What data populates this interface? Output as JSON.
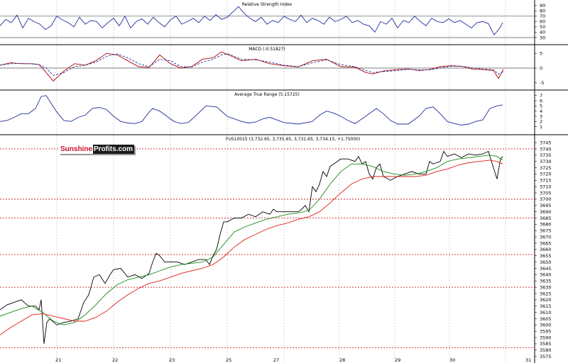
{
  "logo": {
    "part1": "Sunshine",
    "part2": "Profits.com"
  },
  "chart_data": [
    {
      "type": "line",
      "title": "Relative Strength Index",
      "ylim": [
        22,
        95
      ],
      "yticks": [
        90,
        80,
        70,
        60,
        50,
        40,
        30
      ],
      "reference_lines": [
        70,
        30
      ],
      "series": [
        {
          "color": "#1f2f9c",
          "x": [
            0,
            8,
            16,
            24,
            32,
            40,
            48,
            56,
            64,
            72,
            80,
            88,
            96,
            104,
            112,
            120,
            128,
            136,
            144,
            152,
            160,
            168,
            176,
            184,
            192,
            200,
            208,
            216,
            224,
            232,
            240,
            248,
            256,
            264,
            272,
            280,
            288,
            296,
            304,
            312,
            320,
            328,
            336,
            344,
            352,
            360,
            368,
            376,
            384,
            392,
            400,
            408,
            416,
            424,
            432,
            440,
            448,
            456,
            464,
            472,
            480,
            488,
            496,
            504,
            512,
            520,
            528,
            536,
            544,
            552,
            560,
            568,
            576,
            584,
            592,
            600,
            608,
            616,
            624,
            632,
            640,
            648,
            656,
            664,
            672,
            680,
            688,
            696,
            704,
            708
          ],
          "values": [
            52,
            64,
            58,
            72,
            48,
            66,
            60,
            55,
            45,
            52,
            70,
            63,
            58,
            50,
            68,
            55,
            62,
            60,
            48,
            58,
            66,
            52,
            70,
            48,
            60,
            65,
            55,
            68,
            58,
            50,
            63,
            70,
            55,
            60,
            66,
            58,
            70,
            62,
            73,
            64,
            68,
            78,
            88,
            75,
            66,
            60,
            68,
            55,
            62,
            58,
            70,
            64,
            60,
            72,
            58,
            66,
            62,
            55,
            68,
            60,
            64,
            70,
            58,
            62,
            55,
            52,
            40,
            60,
            55,
            66,
            48,
            62,
            58,
            70,
            60,
            52,
            66,
            60,
            58,
            65,
            58,
            62,
            55,
            48,
            58,
            60,
            56,
            35,
            48,
            58
          ]
        }
      ]
    },
    {
      "type": "line",
      "title": "MACD (-0.51827)",
      "ylim": [
        -6.5,
        7
      ],
      "yticks": [
        5,
        0,
        -5
      ],
      "series": [
        {
          "name": "MACD",
          "color": "#b00000",
          "x": [
            0,
            15,
            30,
            45,
            55,
            65,
            75,
            90,
            105,
            120,
            135,
            150,
            165,
            180,
            195,
            210,
            225,
            240,
            255,
            270,
            285,
            300,
            312,
            322,
            340,
            360,
            380,
            400,
            420,
            440,
            460,
            480,
            500,
            515,
            525,
            540,
            560,
            575,
            590,
            605,
            620,
            635,
            650,
            665,
            680,
            695,
            702,
            709
          ],
          "values": [
            1.0,
            1.8,
            1.5,
            1.5,
            1.2,
            -1.5,
            -4.4,
            -1.0,
            1.5,
            1.0,
            2.5,
            5.0,
            4.5,
            2.5,
            0.5,
            0.2,
            4.5,
            1.5,
            0.0,
            0.5,
            3.0,
            3.5,
            5.5,
            4.5,
            2.5,
            3.0,
            1.5,
            0.8,
            0.4,
            2.5,
            3.0,
            0.5,
            0.3,
            -1.5,
            -2.0,
            -1.0,
            -0.5,
            -0.3,
            -0.8,
            -0.5,
            0.5,
            0.8,
            0.6,
            -0.3,
            -0.5,
            -0.8,
            -3.5,
            -0.5
          ]
        },
        {
          "name": "Signal",
          "color": "#1f2f9c",
          "x": [
            0,
            15,
            30,
            45,
            55,
            65,
            75,
            90,
            105,
            120,
            135,
            150,
            165,
            180,
            195,
            210,
            225,
            240,
            255,
            270,
            285,
            300,
            312,
            322,
            340,
            360,
            380,
            400,
            420,
            440,
            460,
            480,
            500,
            515,
            525,
            540,
            560,
            575,
            590,
            605,
            620,
            635,
            650,
            665,
            680,
            695,
            702,
            709
          ],
          "values": [
            1.0,
            1.5,
            1.6,
            1.4,
            1.2,
            0.0,
            -2.5,
            -1.5,
            0.5,
            1.0,
            2.0,
            4.0,
            4.8,
            3.5,
            1.5,
            0.5,
            3.0,
            2.5,
            0.5,
            0.4,
            2.0,
            3.0,
            4.5,
            4.8,
            3.0,
            2.8,
            2.0,
            1.0,
            0.5,
            1.8,
            2.8,
            1.2,
            0.5,
            -0.8,
            -1.5,
            -1.2,
            -0.8,
            -0.4,
            -0.6,
            -0.6,
            0.0,
            0.6,
            0.6,
            0.1,
            -0.3,
            -0.6,
            -2.0,
            -1.2
          ]
        }
      ]
    },
    {
      "type": "line",
      "title": "Average True Range (5.15725)",
      "ylim": [
        0,
        7.5
      ],
      "yticks": [
        7,
        6,
        5,
        4,
        3,
        2,
        1
      ],
      "series": [
        {
          "color": "#1f2f9c",
          "x": [
            0,
            10,
            20,
            30,
            40,
            50,
            58,
            65,
            72,
            80,
            90,
            100,
            110,
            120,
            130,
            140,
            150,
            160,
            170,
            180,
            190,
            200,
            210,
            215,
            225,
            235,
            245,
            255,
            265,
            275,
            290,
            305,
            315,
            320,
            330,
            340,
            350,
            360,
            370,
            380,
            400,
            420,
            440,
            450,
            460,
            470,
            480,
            490,
            500,
            515,
            525,
            530,
            540,
            550,
            560,
            575,
            590,
            600,
            610,
            620,
            630,
            640,
            650,
            660,
            670,
            680,
            690,
            700,
            708
          ],
          "values": [
            2.0,
            2.2,
            2.8,
            3.5,
            3.5,
            4.5,
            6.8,
            7.0,
            5.5,
            3.8,
            2.2,
            2.0,
            2.8,
            3.2,
            4.5,
            4.7,
            4.3,
            3.0,
            2.0,
            1.7,
            1.6,
            2.0,
            3.8,
            4.5,
            4.0,
            3.0,
            2.0,
            1.6,
            1.8,
            3.0,
            5.0,
            4.8,
            3.6,
            3.0,
            2.5,
            2.0,
            1.7,
            1.9,
            2.5,
            2.8,
            1.8,
            1.5,
            2.0,
            3.2,
            4.0,
            3.6,
            3.0,
            2.2,
            1.6,
            3.0,
            4.0,
            4.5,
            3.5,
            2.2,
            1.5,
            1.5,
            3.0,
            4.5,
            4.8,
            3.5,
            2.0,
            1.6,
            1.3,
            1.5,
            2.0,
            2.3,
            4.5,
            5.0,
            5.2
          ]
        }
      ]
    },
    {
      "type": "line",
      "title": "FUS10015 (3,732.65, 3,735.65, 3,731.65, 3,734.15, +1.75000)",
      "ylim": [
        3572,
        3749
      ],
      "yticks": [
        3745,
        3740,
        3735,
        3730,
        3725,
        3720,
        3715,
        3710,
        3705,
        3700,
        3695,
        3690,
        3685,
        3680,
        3675,
        3670,
        3665,
        3660,
        3655,
        3650,
        3645,
        3640,
        3635,
        3630,
        3625,
        3620,
        3615,
        3610,
        3605,
        3600,
        3595,
        3590,
        3585,
        3580,
        3575
      ],
      "x_labels": [
        "21",
        "22",
        "23",
        "24",
        "25",
        "26",
        "27",
        "28",
        "29",
        "30",
        "31"
      ],
      "horizontal_levels": [
        3740,
        3700,
        3685,
        3656,
        3630,
        3582
      ],
      "series": [
        {
          "name": "Price",
          "color": "#000000",
          "x": [
            0,
            10,
            20,
            30,
            40,
            50,
            55,
            58,
            62,
            66,
            70,
            80,
            90,
            100,
            110,
            118,
            125,
            132,
            140,
            148,
            155,
            160,
            170,
            180,
            190,
            200,
            210,
            215,
            220,
            225,
            232,
            240,
            250,
            260,
            270,
            280,
            290,
            295,
            300,
            305,
            310,
            315,
            320,
            330,
            340,
            350,
            360,
            370,
            380,
            385,
            390,
            400,
            410,
            420,
            425,
            430,
            435,
            440,
            445,
            450,
            455,
            460,
            465,
            470,
            480,
            490,
            500,
            505,
            510,
            515,
            520,
            525,
            530,
            535,
            540,
            550,
            560,
            570,
            580,
            590,
            600,
            605,
            610,
            620,
            625,
            630,
            640,
            650,
            660,
            670,
            680,
            688,
            690,
            695,
            700,
            705,
            708
          ],
          "values": [
            3612,
            3616,
            3618,
            3620,
            3615,
            3615,
            3612,
            3620,
            3585,
            3602,
            3605,
            3600,
            3602,
            3603,
            3605,
            3618,
            3624,
            3638,
            3640,
            3633,
            3640,
            3644,
            3645,
            3638,
            3640,
            3637,
            3641,
            3650,
            3657,
            3655,
            3650,
            3650,
            3650,
            3648,
            3650,
            3652,
            3652,
            3648,
            3655,
            3660,
            3672,
            3682,
            3682,
            3685,
            3685,
            3688,
            3686,
            3690,
            3688,
            3692,
            3690,
            3690,
            3690,
            3690,
            3692,
            3695,
            3690,
            3710,
            3706,
            3712,
            3722,
            3718,
            3726,
            3728,
            3732,
            3732,
            3730,
            3734,
            3728,
            3730,
            3720,
            3716,
            3725,
            3728,
            3718,
            3715,
            3718,
            3720,
            3722,
            3720,
            3720,
            3730,
            3728,
            3730,
            3738,
            3734,
            3736,
            3733,
            3736,
            3735,
            3736,
            3738,
            3734,
            3725,
            3716,
            3732,
            3734
          ]
        },
        {
          "name": "MA short",
          "color": "#1a8a1a",
          "x": [
            0,
            15,
            30,
            45,
            60,
            75,
            90,
            105,
            120,
            135,
            150,
            165,
            180,
            195,
            210,
            225,
            240,
            255,
            270,
            285,
            300,
            315,
            330,
            345,
            360,
            375,
            390,
            405,
            420,
            435,
            450,
            465,
            480,
            495,
            510,
            525,
            540,
            555,
            570,
            585,
            600,
            615,
            630,
            645,
            660,
            675,
            690,
            700,
            708
          ],
          "values": [
            3607,
            3610,
            3613,
            3615,
            3610,
            3603,
            3600,
            3602,
            3608,
            3616,
            3625,
            3632,
            3636,
            3638,
            3640,
            3643,
            3646,
            3648,
            3649,
            3650,
            3654,
            3664,
            3674,
            3678,
            3681,
            3684,
            3686,
            3688,
            3689,
            3691,
            3700,
            3712,
            3722,
            3728,
            3728,
            3726,
            3722,
            3720,
            3719,
            3720,
            3722,
            3725,
            3730,
            3732,
            3733,
            3734,
            3735,
            3734,
            3731
          ]
        },
        {
          "name": "MA long",
          "color": "#e0201a",
          "x": [
            0,
            15,
            30,
            45,
            60,
            75,
            90,
            105,
            120,
            135,
            150,
            165,
            180,
            195,
            210,
            225,
            240,
            255,
            270,
            285,
            300,
            315,
            330,
            345,
            360,
            375,
            390,
            405,
            420,
            435,
            450,
            465,
            480,
            495,
            510,
            525,
            540,
            555,
            570,
            585,
            600,
            615,
            630,
            645,
            660,
            675,
            690,
            700,
            708
          ],
          "values": [
            3592,
            3598,
            3603,
            3608,
            3609,
            3607,
            3605,
            3603,
            3603,
            3606,
            3611,
            3618,
            3624,
            3629,
            3633,
            3635,
            3638,
            3641,
            3643,
            3645,
            3648,
            3654,
            3662,
            3668,
            3672,
            3676,
            3679,
            3681,
            3684,
            3686,
            3690,
            3697,
            3705,
            3712,
            3716,
            3718,
            3718,
            3718,
            3718,
            3718,
            3719,
            3722,
            3724,
            3727,
            3729,
            3730,
            3731,
            3730,
            3728
          ]
        }
      ]
    }
  ]
}
